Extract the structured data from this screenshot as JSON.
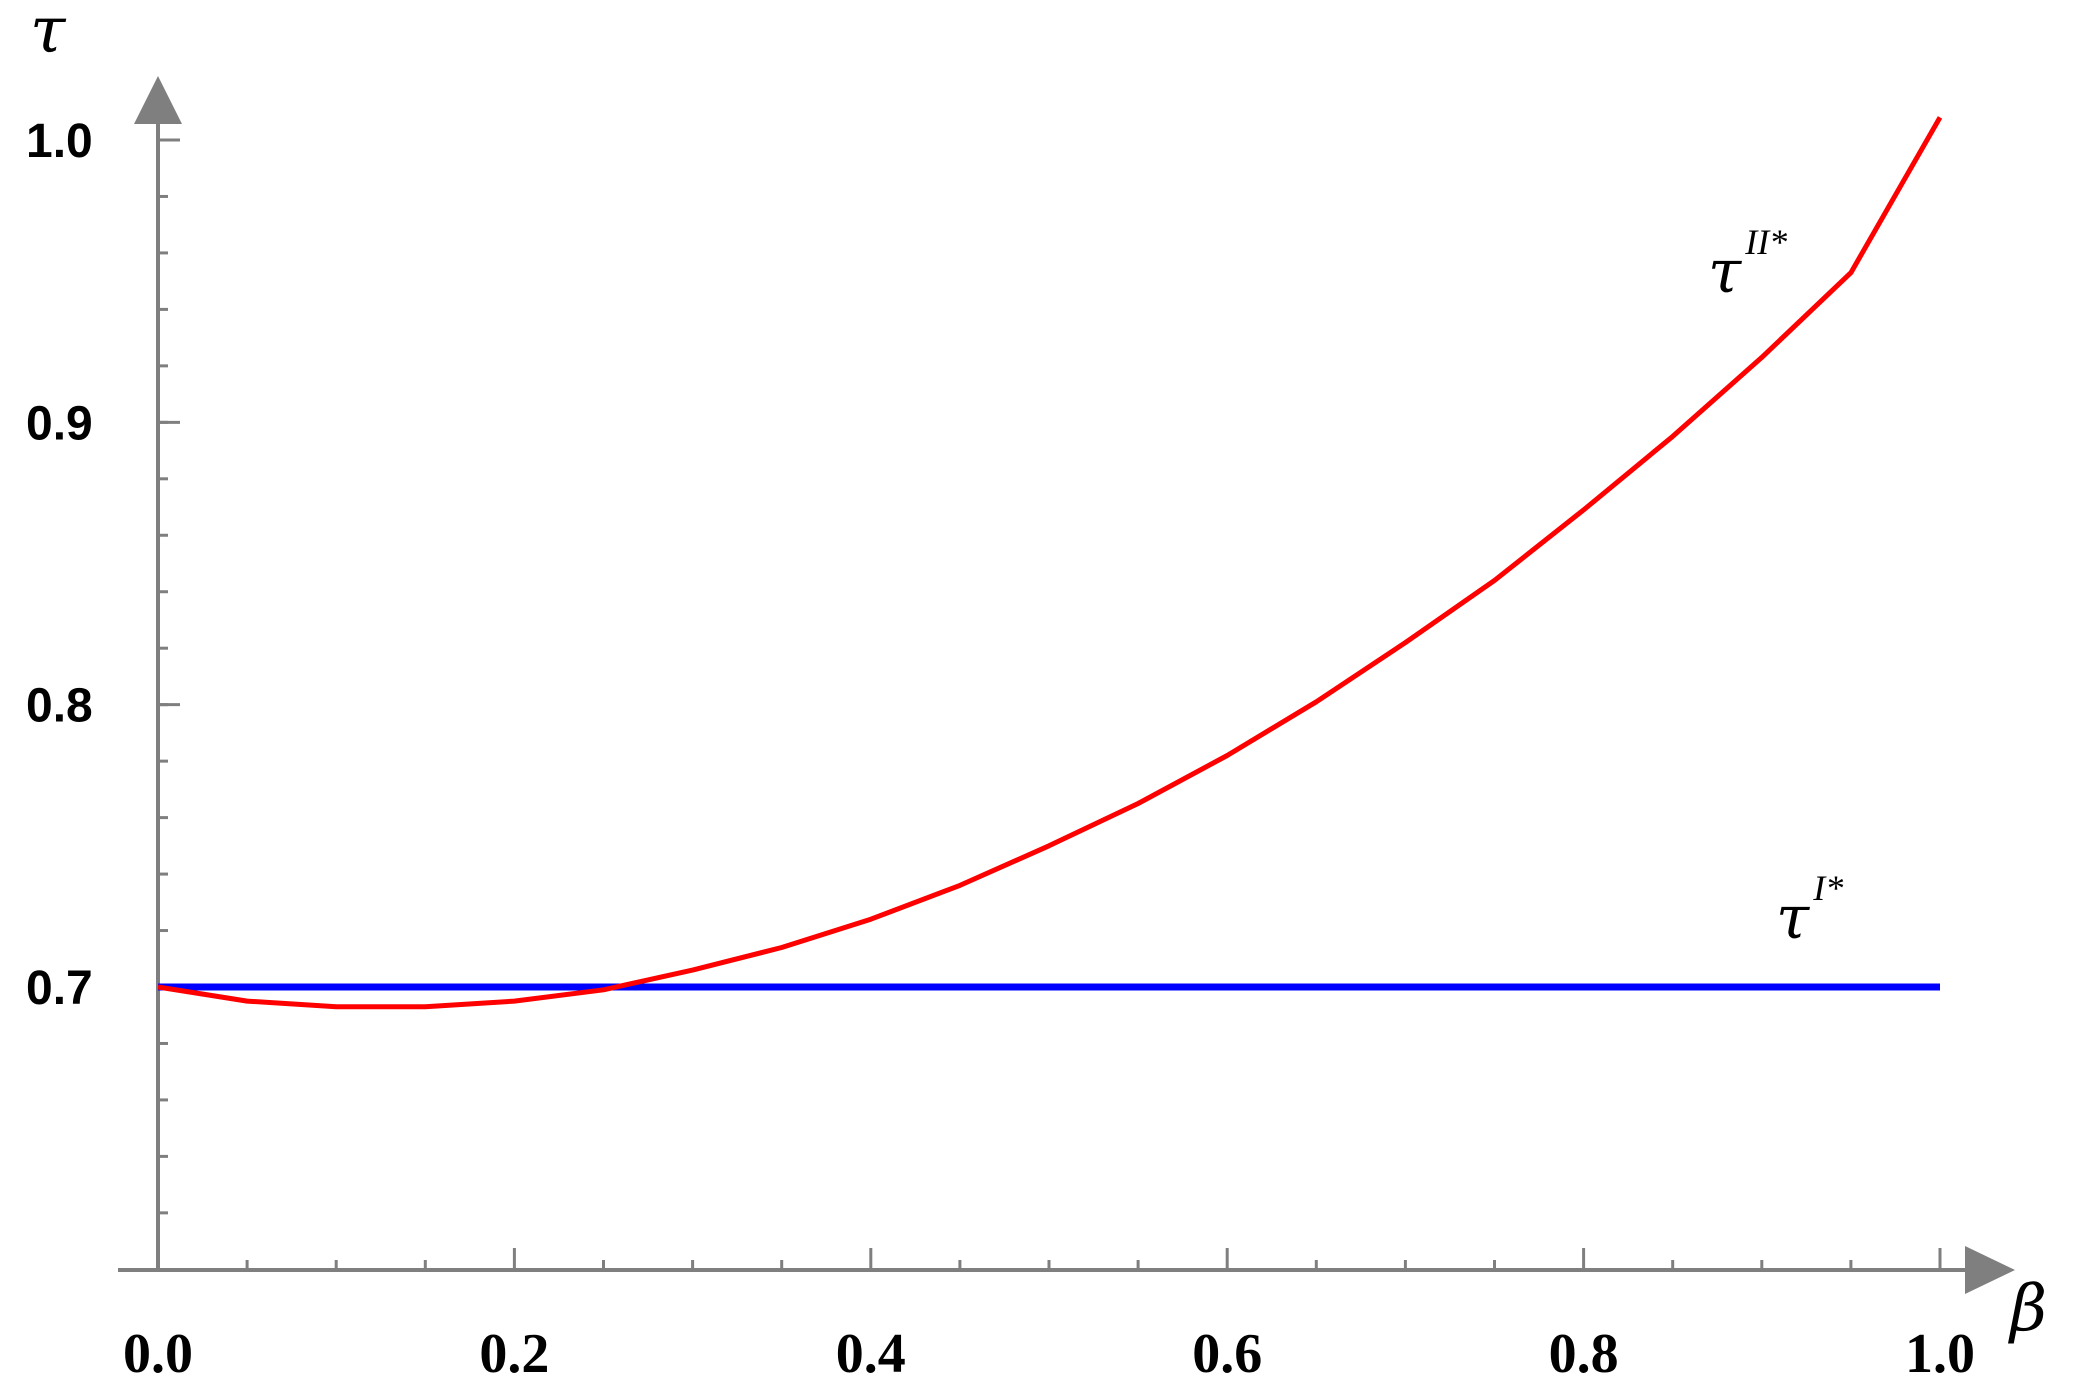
{
  "chart_data": {
    "type": "line",
    "title": "",
    "xlabel": "β",
    "ylabel": "τ",
    "xlim": [
      0.0,
      1.0
    ],
    "ylim": [
      0.6,
      1.02
    ],
    "x_ticks": [
      "0.0",
      "0.2",
      "0.4",
      "0.6",
      "0.8",
      "1.0"
    ],
    "y_ticks": [
      "0.7",
      "0.8",
      "0.9",
      "1.0"
    ],
    "x_tick_values": [
      0.0,
      0.2,
      0.4,
      0.6,
      0.8,
      1.0
    ],
    "y_tick_values": [
      0.7,
      0.8,
      0.9,
      1.0
    ],
    "grid": false,
    "legend": "none",
    "series": [
      {
        "name": "τ",
        "superscript": "II*",
        "color": "#ff0000",
        "x": [
          0.0,
          0.05,
          0.1,
          0.15,
          0.2,
          0.25,
          0.3,
          0.35,
          0.4,
          0.45,
          0.5,
          0.55,
          0.6,
          0.65,
          0.7,
          0.75,
          0.8,
          0.85,
          0.9,
          0.95,
          1.0
        ],
        "y": [
          0.7,
          0.695,
          0.693,
          0.693,
          0.695,
          0.699,
          0.706,
          0.714,
          0.724,
          0.736,
          0.75,
          0.765,
          0.782,
          0.801,
          0.822,
          0.844,
          0.869,
          0.895,
          0.923,
          0.953,
          1.008
        ]
      },
      {
        "name": "τ",
        "superscript": "I*",
        "color": "#0000ff",
        "x": [
          0.0,
          1.0
        ],
        "y": [
          0.7,
          0.7
        ]
      }
    ]
  }
}
